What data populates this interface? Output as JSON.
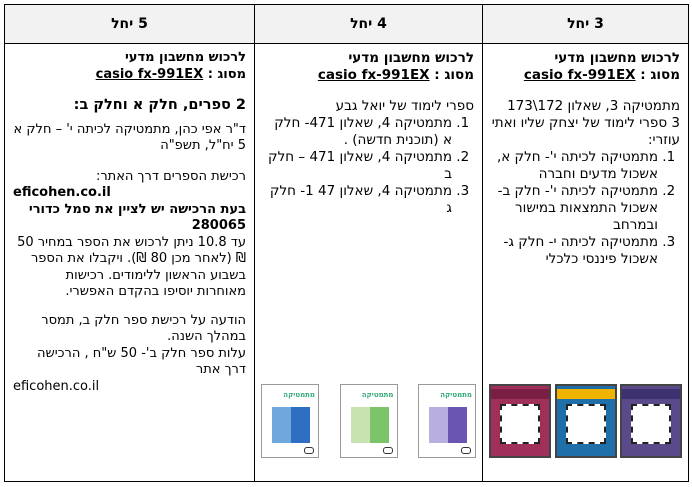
{
  "headers": {
    "col3": "3 יחל",
    "col4": "4 יחל",
    "col5": "5 יחל"
  },
  "calculator": {
    "title": "לרכוש מחשבון מדעי",
    "type_label": "מסוג :",
    "model": "casio fx-991EX"
  },
  "col3": {
    "line1": "מתמטיקה 3, שאלון 172\\173",
    "line2": "3 ספרי לימוד של יצחק שליו ואתי עוזרי:",
    "items": [
      "מתמטיקה לכיתה י'- חלק א, אשכול מדעים וחברה",
      "מתמטיקה לכיתה י'- חלק ב- אשכול התמצאות במישור ובמרחב",
      "מתמטיקה לכיתה י- חלק ג- אשכול פיננסי כלכלי"
    ],
    "book_colors": [
      "#5b4a8a",
      "#1f6fa8",
      "#a0305a"
    ]
  },
  "col4": {
    "intro": "ספרי לימוד של יואל גבע",
    "items": [
      "מתמטיקה 4, שאלון 471- חלק א (תוכנית חדשה) .",
      "מתמטיקה 4, שאלון 471 – חלק ב",
      "מתמטיקה 4, שאלון 47 1- חלק ג"
    ],
    "book_title": "מתמטיקה",
    "book_colors": [
      "#b9aee0",
      "#c9e3b0",
      "#a9c8ec"
    ]
  },
  "col5": {
    "heading": "2 ספרים, חלק א וחלק ב:",
    "author": "ד\"ר אפי כהן, מתמטיקה לכיתה י' – חלק א 5 יח\"ל, תשפ\"ה",
    "buy_site_label": "רכישת הספרים דרך האתר:",
    "site": "eficohen.co.il",
    "coupon_note": "בעת הרכישה יש לציין את סמל כדורי 280065",
    "price_note": "עד 10.8 ניתן לרכוש את הספר במחיר 50 ₪ (לאחר מכן 80 ₪). ויקבלו את הספר בשבוע הראשון ללימודים. רכישות מאוחרות יוסיפו בהקדם האפשרי.",
    "part_b_note": "הודעה על רכישת ספר חלק ב, תמסר במהלך השנה.",
    "part_b_price": "עלות ספר חלק ב'- 50 ש\"ח , הרכישה דרך אתר",
    "site2": "eficohen.co.il"
  }
}
